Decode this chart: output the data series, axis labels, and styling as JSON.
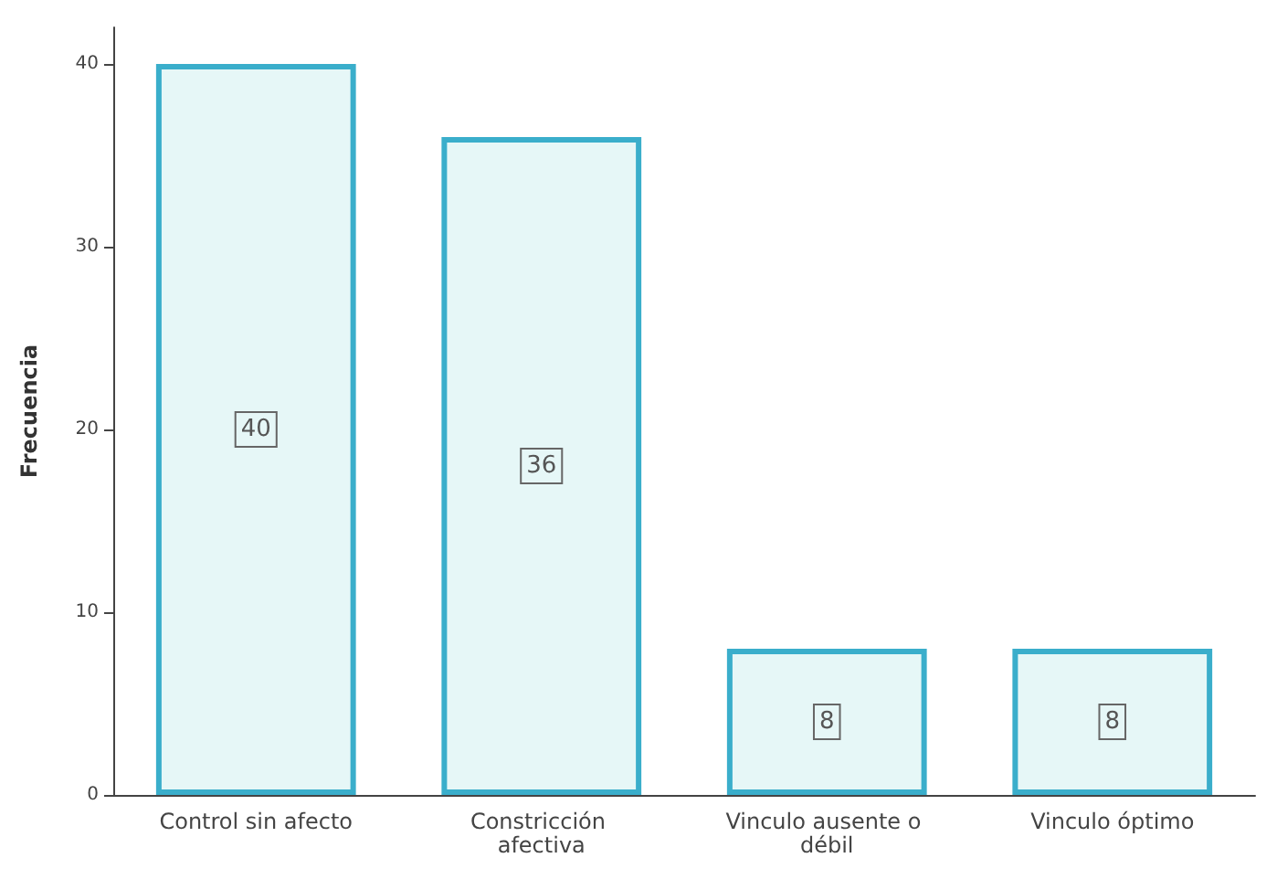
{
  "chart_data": {
    "type": "bar",
    "ylabel": "Frecuencia",
    "categories": [
      "Control sin afecto",
      "Constricción afectiva",
      "Vinculo ausente o débil",
      "Vinculo óptimo"
    ],
    "values": [
      40,
      36,
      8,
      8
    ],
    "color": "#e6f7f7",
    "ylim": [
      0,
      42
    ],
    "yticks": [
      0,
      10,
      20,
      30,
      40
    ],
    "grid": false,
    "data_labels": true
  }
}
